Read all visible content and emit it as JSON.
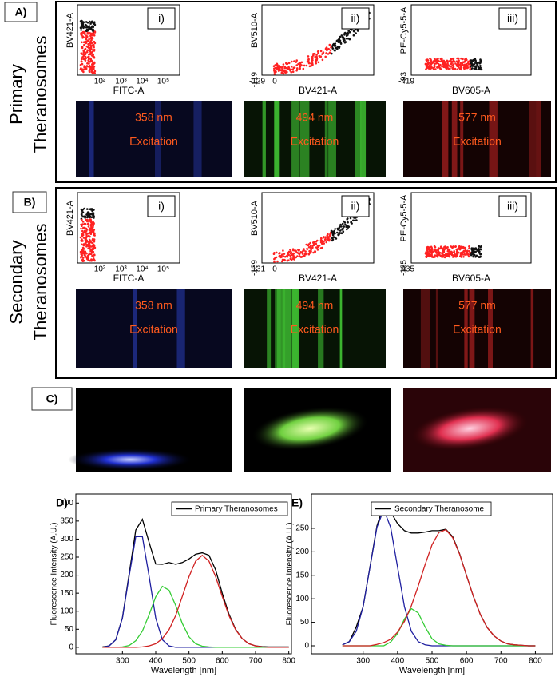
{
  "figure": {
    "panel_a": {
      "label": "A)",
      "row_title": [
        "Primary",
        "Theranosomes"
      ],
      "plots": [
        {
          "number": "i)",
          "y_label": "BV421-A",
          "y_ticks": [],
          "x_ticks": [
            "10²",
            "10³",
            "10⁴",
            "10⁵"
          ],
          "x_label": "FITC-A"
        },
        {
          "number": "ii)",
          "y_label": "BV510-A",
          "y_ticks": [
            "-119"
          ],
          "x_ticks": [
            "-129",
            "0"
          ],
          "x_label": "BV421-A"
        },
        {
          "number": "iii)",
          "y_label": "PE-Cy5-5-A",
          "y_ticks": [
            "-93"
          ],
          "x_ticks": [
            "-419"
          ],
          "x_label": "BV605-A"
        }
      ],
      "images": [
        {
          "lines": [
            "358 nm",
            "Excitation"
          ]
        },
        {
          "lines": [
            "494 nm",
            "Excitation"
          ]
        },
        {
          "lines": [
            "577 nm",
            "Excitation"
          ]
        }
      ]
    },
    "panel_b": {
      "label": "B)",
      "row_title": [
        "Secondary",
        "Theranosomes"
      ],
      "plots": [
        {
          "number": "i)",
          "y_label": "BV421-A",
          "y_ticks": [],
          "x_ticks": [
            "10²",
            "10³",
            "10⁴",
            "10⁵"
          ],
          "x_label": "FITC-A"
        },
        {
          "number": "ii)",
          "y_label": "BV510-A",
          "y_ticks": [
            "-139"
          ],
          "x_ticks": [
            "-131",
            "0"
          ],
          "x_label": "BV421-A"
        },
        {
          "number": "iii)",
          "y_label": "PE-Cy5-5-A",
          "y_ticks": [
            "-135"
          ],
          "x_ticks": [
            "-435"
          ],
          "x_label": "BV605-A"
        }
      ],
      "images": [
        {
          "lines": [
            "358 nm",
            "Excitation"
          ]
        },
        {
          "lines": [
            "494 nm",
            "Excitation"
          ]
        },
        {
          "lines": [
            "577 nm",
            "Excitation"
          ]
        }
      ]
    },
    "panel_c": {
      "label": "C)"
    }
  },
  "chart_data": [
    {
      "type": "line",
      "panel_label": "D)",
      "x_label": "Wavelength [nm]",
      "y_label": "Fluorescence Intensity (A.U.)",
      "x": [
        240,
        260,
        280,
        300,
        320,
        340,
        360,
        380,
        400,
        420,
        440,
        460,
        480,
        500,
        520,
        540,
        560,
        580,
        600,
        620,
        640,
        660,
        680,
        700,
        720,
        740,
        760,
        780,
        800
      ],
      "series": [
        {
          "name": "Primary Theranosomes",
          "color": "#000000",
          "values": [
            1,
            4,
            21,
            82,
            203,
            325,
            355,
            291,
            231,
            230,
            235,
            230,
            235,
            245,
            258,
            262,
            255,
            215,
            150,
            92,
            50,
            24,
            10,
            4,
            2,
            1,
            1,
            1,
            1
          ]
        },
        {
          "color": "#1f1fa0",
          "values": [
            0,
            4,
            21,
            81,
            197,
            307,
            307,
            197,
            81,
            21,
            4,
            0,
            0,
            0,
            0,
            0,
            0,
            0,
            0,
            0,
            0,
            0,
            0,
            0,
            0,
            0,
            0,
            0,
            0
          ]
        },
        {
          "color": "#33cc33",
          "values": [
            0,
            0,
            0,
            1,
            5,
            18,
            45,
            90,
            140,
            169,
            158,
            116,
            66,
            29,
            10,
            3,
            1,
            0,
            0,
            0,
            0,
            0,
            0,
            0,
            0,
            0,
            0,
            0,
            0
          ]
        },
        {
          "color": "#d02020",
          "values": [
            0,
            0,
            0,
            0,
            0,
            0,
            1,
            4,
            10,
            24,
            49,
            88,
            141,
            196,
            239,
            255,
            239,
            196,
            141,
            88,
            49,
            24,
            10,
            4,
            1,
            0,
            0,
            0,
            0
          ]
        }
      ],
      "xlim": [
        160,
        808
      ],
      "ylim": [
        -18,
        425
      ],
      "xticks": [
        300,
        400,
        500,
        600,
        700,
        800
      ],
      "yticks": [
        0,
        50,
        100,
        150,
        200,
        250,
        300,
        350,
        400
      ]
    },
    {
      "type": "line",
      "panel_label": "E)",
      "x_label": "Wavelength [nm]",
      "y_label": "Fluorescence Intensity (A.U.)",
      "x": [
        240,
        260,
        280,
        300,
        320,
        340,
        360,
        380,
        400,
        420,
        440,
        460,
        480,
        500,
        520,
        540,
        560,
        580,
        600,
        620,
        640,
        660,
        680,
        700,
        720,
        740,
        760,
        780,
        800
      ],
      "series": [
        {
          "name": "Secondary Theranosome",
          "color": "#000000",
          "values": [
            2,
            9,
            40,
            83,
            168,
            255,
            300,
            285,
            260,
            245,
            240,
            240,
            242,
            245,
            245,
            248,
            232,
            196,
            150,
            105,
            67,
            39,
            21,
            10,
            4,
            2,
            1,
            0,
            0
          ]
        },
        {
          "color": "#1f1fa0",
          "values": [
            2,
            9,
            31,
            83,
            167,
            252,
            290,
            252,
            167,
            83,
            31,
            9,
            2,
            0,
            0,
            0,
            0,
            0,
            0,
            0,
            0,
            0,
            0,
            0,
            0,
            0,
            0,
            0,
            0
          ]
        },
        {
          "color": "#33cc33",
          "values": [
            0,
            0,
            0,
            0,
            0,
            0,
            0,
            8,
            26,
            57,
            79,
            70,
            40,
            15,
            4,
            1,
            0,
            0,
            0,
            0,
            0,
            0,
            0,
            0,
            0,
            0,
            0,
            0,
            0
          ]
        },
        {
          "color": "#d02020",
          "values": [
            0,
            0,
            0,
            0,
            0,
            3,
            7,
            14,
            29,
            52,
            85,
            127,
            173,
            215,
            241,
            247,
            230,
            195,
            150,
            105,
            67,
            39,
            21,
            10,
            4,
            2,
            1,
            0,
            0
          ]
        }
      ],
      "xlim": [
        150,
        850
      ],
      "ylim": [
        -17,
        323
      ],
      "xticks": [
        300,
        400,
        500,
        600,
        700,
        800
      ],
      "yticks": [
        0,
        50,
        100,
        150,
        200,
        250
      ]
    }
  ]
}
